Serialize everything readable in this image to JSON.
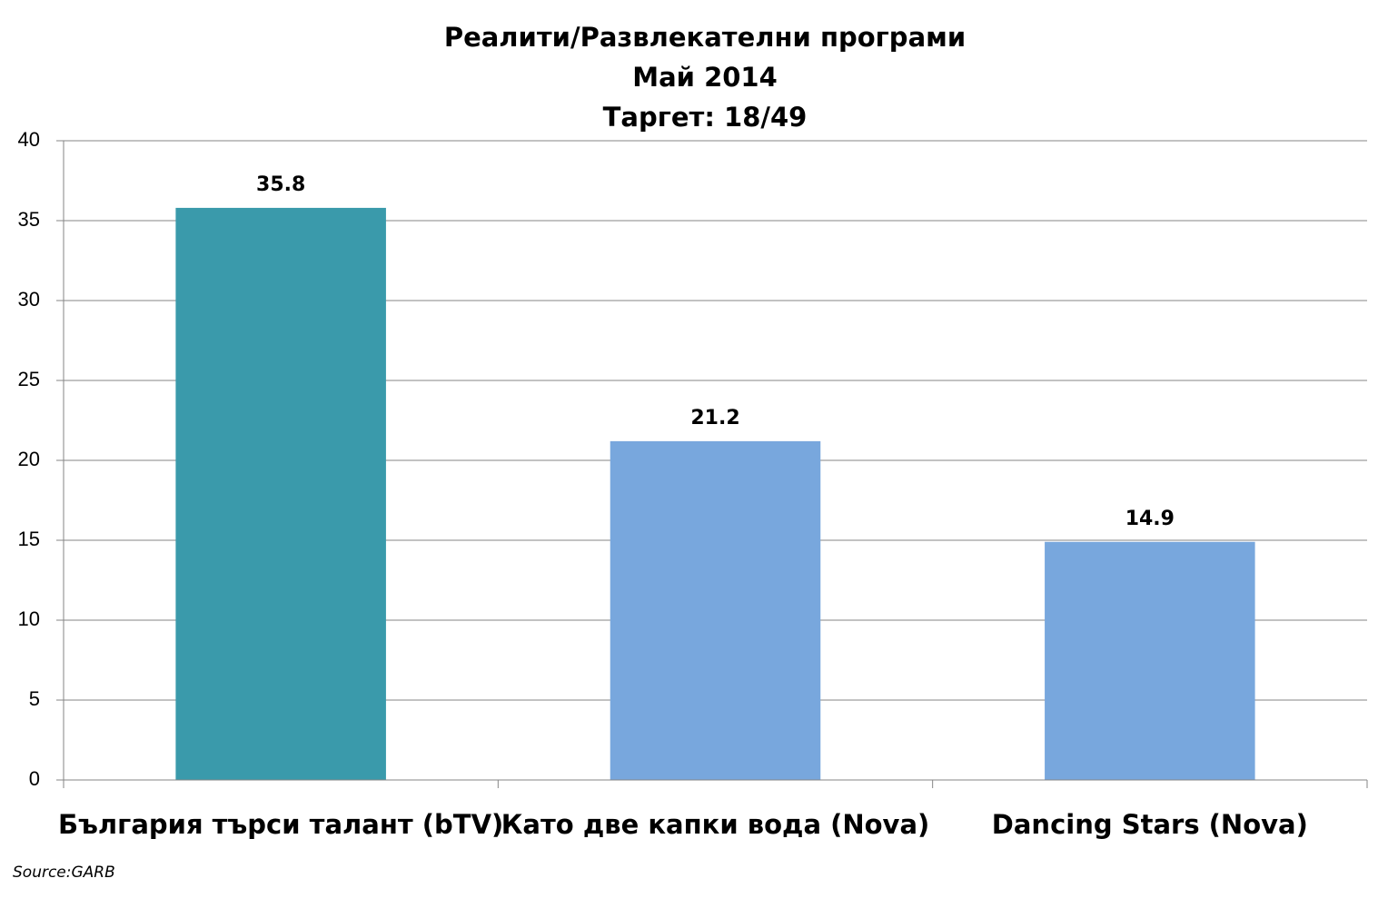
{
  "chart_data": {
    "type": "bar",
    "title": [
      "Реалити/Развлекателни програми",
      "Май 2014",
      "Таргет: 18/49"
    ],
    "categories": [
      "България търси талант (bTV)",
      "Като две капки вода (Nova)",
      "Dancing Stars (Nova)"
    ],
    "values": [
      35.8,
      21.2,
      14.9
    ],
    "colors": [
      "#3a9aab",
      "#78a7dd",
      "#78a7dd"
    ],
    "ylim": [
      0,
      40
    ],
    "yticks": [
      0,
      5,
      10,
      15,
      20,
      25,
      30,
      35,
      40
    ],
    "grid": true,
    "source": "Source:GARB"
  }
}
